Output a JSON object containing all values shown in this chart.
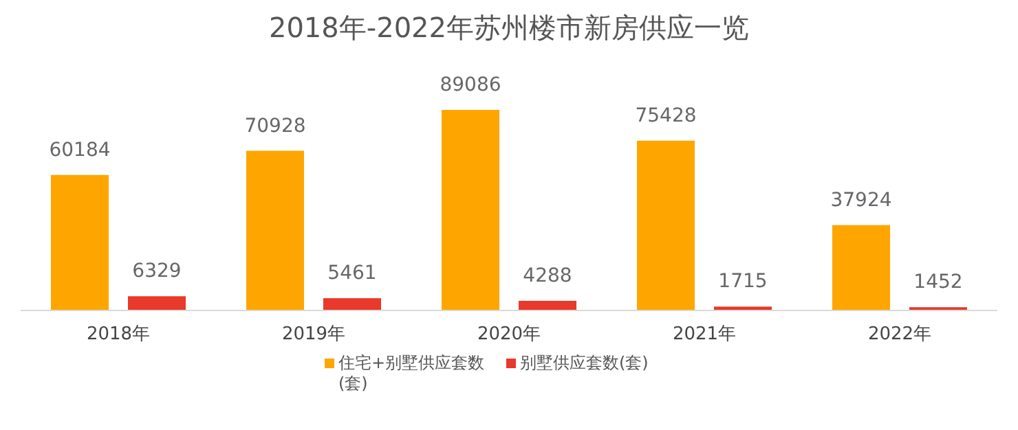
{
  "chart_data": {
    "type": "bar",
    "title": "2018年-2022年苏州楼市新房供应一览",
    "categories": [
      "2018年",
      "2019年",
      "2020年",
      "2021年",
      "2022年"
    ],
    "series": [
      {
        "name": "住宅+别墅供应套数(套)",
        "color": "#ffa500",
        "values": [
          60184,
          70928,
          89086,
          75428,
          37924
        ]
      },
      {
        "name": "别墅供应套数(套)",
        "color": "#e8392a",
        "values": [
          6329,
          5461,
          4288,
          1715,
          1452
        ]
      }
    ],
    "data_labels": true,
    "legend": "bottom",
    "grid": false
  }
}
